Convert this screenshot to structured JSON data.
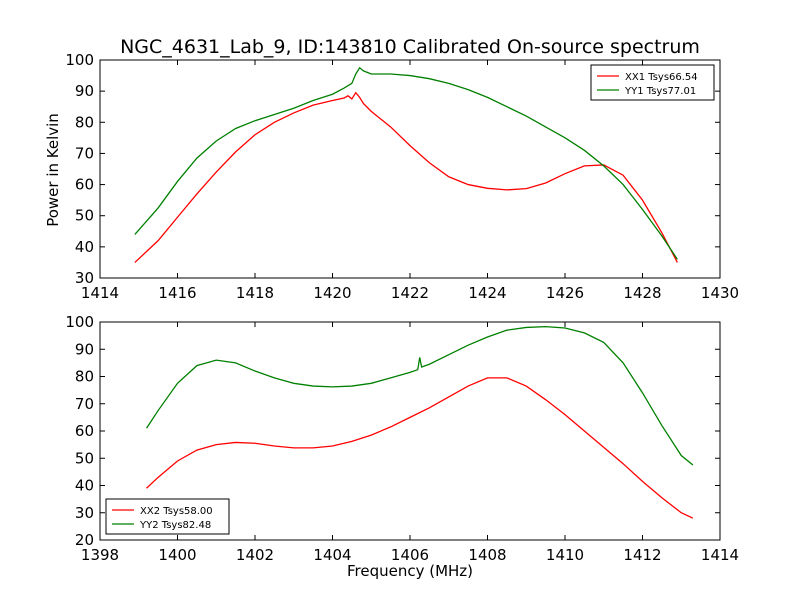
{
  "chart_data": {
    "title": "NGC_4631_Lab_9, ID:143810 Calibrated On-source spectrum",
    "xlabel": "Frequency (MHz)",
    "panels": [
      {
        "type": "line",
        "ylabel": "Power in Kelvin",
        "xlim": [
          1414,
          1430
        ],
        "ylim": [
          30,
          100
        ],
        "xticks": [
          1414,
          1416,
          1418,
          1420,
          1422,
          1424,
          1426,
          1428,
          1430
        ],
        "yticks": [
          30,
          40,
          50,
          60,
          70,
          80,
          90,
          100
        ],
        "legend_loc": "upper right",
        "series": [
          {
            "name": "XX1 Tsys66.54",
            "color": "#ff0000",
            "points": [
              [
                1414.9,
                35
              ],
              [
                1415.5,
                42
              ],
              [
                1416,
                49.5
              ],
              [
                1416.5,
                57
              ],
              [
                1417,
                64
              ],
              [
                1417.5,
                70.5
              ],
              [
                1418,
                76
              ],
              [
                1418.5,
                80
              ],
              [
                1419,
                83
              ],
              [
                1419.5,
                85.5
              ],
              [
                1420,
                87
              ],
              [
                1420.3,
                87.8
              ],
              [
                1420.4,
                88.5
              ],
              [
                1420.5,
                87.5
              ],
              [
                1420.6,
                89.5
              ],
              [
                1420.7,
                88
              ],
              [
                1420.8,
                86
              ],
              [
                1421,
                83.5
              ],
              [
                1421.5,
                78.5
              ],
              [
                1422,
                72.5
              ],
              [
                1422.5,
                67
              ],
              [
                1423,
                62.5
              ],
              [
                1423.5,
                60
              ],
              [
                1424,
                58.8
              ],
              [
                1424.5,
                58.3
              ],
              [
                1425,
                58.7
              ],
              [
                1425.5,
                60.5
              ],
              [
                1426,
                63.5
              ],
              [
                1426.5,
                66
              ],
              [
                1427,
                66.3
              ],
              [
                1427.5,
                63
              ],
              [
                1428,
                55
              ],
              [
                1428.5,
                44.5
              ],
              [
                1428.9,
                35
              ]
            ]
          },
          {
            "name": "YY1 Tsys77.01",
            "color": "#008000",
            "points": [
              [
                1414.9,
                44
              ],
              [
                1415.5,
                52.5
              ],
              [
                1416,
                61
              ],
              [
                1416.5,
                68.5
              ],
              [
                1417,
                74
              ],
              [
                1417.5,
                78
              ],
              [
                1418,
                80.5
              ],
              [
                1418.5,
                82.5
              ],
              [
                1419,
                84.5
              ],
              [
                1419.5,
                87
              ],
              [
                1420,
                89
              ],
              [
                1420.3,
                91
              ],
              [
                1420.5,
                92.5
              ],
              [
                1420.6,
                95.5
              ],
              [
                1420.7,
                97.5
              ],
              [
                1420.8,
                96.5
              ],
              [
                1421,
                95.5
              ],
              [
                1421.5,
                95.5
              ],
              [
                1422,
                95
              ],
              [
                1422.5,
                94
              ],
              [
                1423,
                92.5
              ],
              [
                1423.5,
                90.5
              ],
              [
                1424,
                88
              ],
              [
                1424.5,
                85
              ],
              [
                1425,
                82
              ],
              [
                1425.5,
                78.5
              ],
              [
                1426,
                75
              ],
              [
                1426.5,
                71
              ],
              [
                1427,
                66
              ],
              [
                1427.5,
                60
              ],
              [
                1428,
                52
              ],
              [
                1428.5,
                43.5
              ],
              [
                1428.9,
                36
              ]
            ]
          }
        ]
      },
      {
        "type": "line",
        "ylabel": "",
        "xlim": [
          1398,
          1414
        ],
        "ylim": [
          20,
          100
        ],
        "xticks": [
          1398,
          1400,
          1402,
          1404,
          1406,
          1408,
          1410,
          1412,
          1414
        ],
        "yticks": [
          20,
          30,
          40,
          50,
          60,
          70,
          80,
          90,
          100
        ],
        "legend_loc": "lower left",
        "series": [
          {
            "name": "XX2 Tsys58.00",
            "color": "#ff0000",
            "points": [
              [
                1399.2,
                39
              ],
              [
                1399.5,
                43
              ],
              [
                1400,
                49
              ],
              [
                1400.5,
                53
              ],
              [
                1401,
                55
              ],
              [
                1401.5,
                55.8
              ],
              [
                1402,
                55.5
              ],
              [
                1402.5,
                54.5
              ],
              [
                1403,
                53.8
              ],
              [
                1403.5,
                53.8
              ],
              [
                1404,
                54.5
              ],
              [
                1404.5,
                56.2
              ],
              [
                1405,
                58.5
              ],
              [
                1405.5,
                61.5
              ],
              [
                1406,
                65
              ],
              [
                1406.5,
                68.5
              ],
              [
                1407,
                72.5
              ],
              [
                1407.5,
                76.5
              ],
              [
                1408,
                79.5
              ],
              [
                1408.5,
                79.5
              ],
              [
                1409,
                76.5
              ],
              [
                1409.5,
                71.5
              ],
              [
                1410,
                66
              ],
              [
                1410.5,
                60
              ],
              [
                1411,
                54
              ],
              [
                1411.5,
                48
              ],
              [
                1412,
                41.5
              ],
              [
                1412.5,
                35.5
              ],
              [
                1413,
                30
              ],
              [
                1413.3,
                28
              ]
            ]
          },
          {
            "name": "YY2 Tsys82.48",
            "color": "#008000",
            "points": [
              [
                1399.2,
                61
              ],
              [
                1399.5,
                67.5
              ],
              [
                1400,
                77.5
              ],
              [
                1400.5,
                84
              ],
              [
                1401,
                86
              ],
              [
                1401.5,
                85
              ],
              [
                1402,
                82
              ],
              [
                1402.5,
                79.5
              ],
              [
                1403,
                77.5
              ],
              [
                1403.5,
                76.5
              ],
              [
                1404,
                76.2
              ],
              [
                1404.5,
                76.5
              ],
              [
                1405,
                77.5
              ],
              [
                1405.5,
                79.5
              ],
              [
                1406,
                81.5
              ],
              [
                1406.2,
                82.5
              ],
              [
                1406.25,
                87
              ],
              [
                1406.3,
                83.5
              ],
              [
                1406.5,
                84.5
              ],
              [
                1407,
                88
              ],
              [
                1407.5,
                91.5
              ],
              [
                1408,
                94.5
              ],
              [
                1408.5,
                97
              ],
              [
                1409,
                98
              ],
              [
                1409.5,
                98.3
              ],
              [
                1410,
                97.8
              ],
              [
                1410.5,
                96
              ],
              [
                1411,
                92.5
              ],
              [
                1411.5,
                85
              ],
              [
                1412,
                74
              ],
              [
                1412.5,
                62
              ],
              [
                1413,
                51
              ],
              [
                1413.3,
                47.5
              ]
            ]
          }
        ]
      }
    ]
  }
}
